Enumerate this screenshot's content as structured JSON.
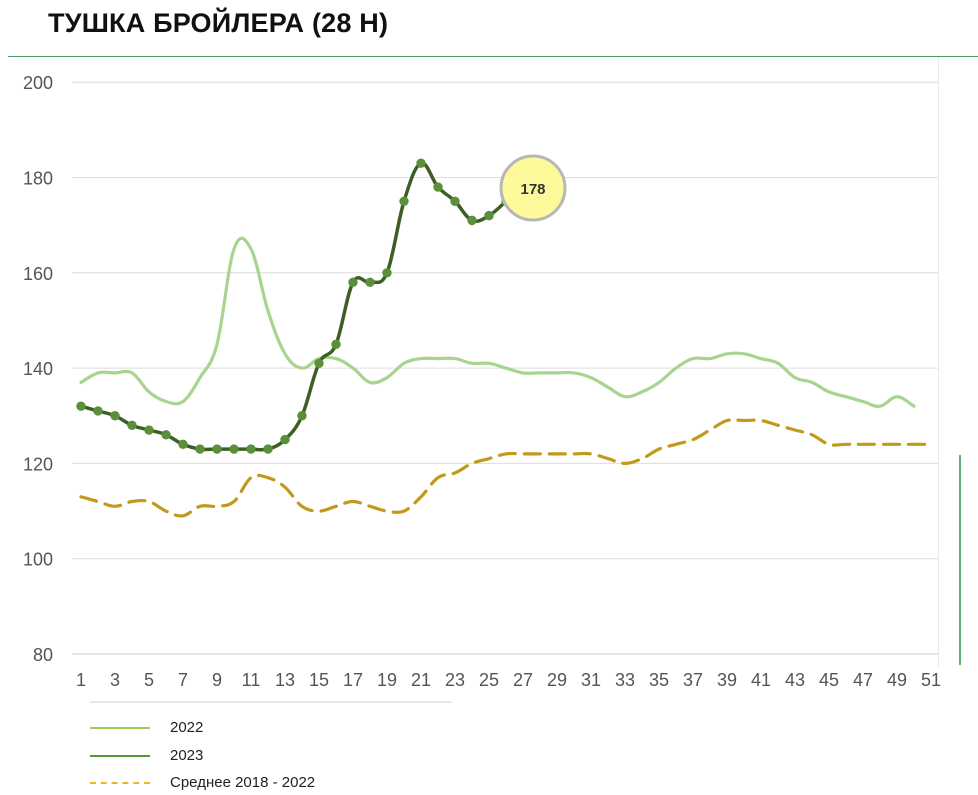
{
  "title": "ТУШКА БРОЙЛЕРА (28 Н)",
  "legend": {
    "items": [
      {
        "label": "2022",
        "color": "#9ccf4f",
        "dash": "solid"
      },
      {
        "label": "2023",
        "color": "#5a9a35",
        "dash": "solid"
      },
      {
        "label": "Среднее 2018 - 2022",
        "color": "#e8b830",
        "dash": "dashed"
      }
    ]
  },
  "chart_data": {
    "type": "line",
    "title": "ТУШКА БРОЙЛЕРА (28 Н)",
    "xlabel": "",
    "ylabel": "",
    "xlim": [
      1,
      51
    ],
    "ylim": [
      80,
      200
    ],
    "y_ticks": [
      80,
      100,
      120,
      140,
      160,
      180,
      200
    ],
    "x_ticks": [
      1,
      3,
      5,
      7,
      9,
      11,
      13,
      15,
      17,
      19,
      21,
      23,
      25,
      27,
      29,
      31,
      33,
      35,
      37,
      39,
      41,
      43,
      45,
      47,
      49,
      51
    ],
    "grid": "horizontal",
    "legend_position": "bottom-left",
    "series": [
      {
        "name": "2022",
        "color": "#a8d48f",
        "style": "solid",
        "x": [
          1,
          2,
          3,
          4,
          5,
          6,
          7,
          8,
          9,
          10,
          11,
          12,
          13,
          14,
          15,
          16,
          17,
          18,
          19,
          20,
          21,
          22,
          23,
          24,
          25,
          26,
          27,
          28,
          29,
          30,
          31,
          32,
          33,
          34,
          35,
          36,
          37,
          38,
          39,
          40,
          41,
          42,
          43,
          44,
          45,
          46,
          47,
          48,
          49,
          50
        ],
        "values": [
          137,
          139,
          139,
          139,
          135,
          133,
          133,
          138,
          145,
          165,
          165,
          152,
          143,
          140,
          142,
          142,
          140,
          137,
          138,
          141,
          142,
          142,
          142,
          141,
          141,
          140,
          139,
          139,
          139,
          139,
          138,
          136,
          134,
          135,
          137,
          140,
          142,
          142,
          143,
          143,
          142,
          141,
          138,
          137,
          135,
          134,
          133,
          132,
          134,
          132
        ]
      },
      {
        "name": "2023",
        "color": "#3d5e25",
        "style": "solid-markers",
        "x": [
          1,
          2,
          3,
          4,
          5,
          6,
          7,
          8,
          9,
          10,
          11,
          12,
          13,
          14,
          15,
          16,
          17,
          18,
          19,
          20,
          21,
          22,
          23,
          24,
          25,
          26
        ],
        "values": [
          132,
          131,
          130,
          128,
          127,
          126,
          124,
          123,
          123,
          123,
          123,
          123,
          125,
          130,
          141,
          145,
          158,
          158,
          160,
          175,
          183,
          178,
          175,
          171,
          172,
          175
        ]
      },
      {
        "name": "Среднее 2018 - 2022",
        "color": "#c19a1b",
        "style": "dashed",
        "x": [
          1,
          2,
          3,
          4,
          5,
          6,
          7,
          8,
          9,
          10,
          11,
          12,
          13,
          14,
          15,
          16,
          17,
          18,
          19,
          20,
          21,
          22,
          23,
          24,
          25,
          26,
          27,
          28,
          29,
          30,
          31,
          32,
          33,
          34,
          35,
          36,
          37,
          38,
          39,
          40,
          41,
          42,
          43,
          44,
          45,
          46,
          47,
          48,
          49,
          50,
          51
        ],
        "values": [
          113,
          112,
          111,
          112,
          112,
          110,
          109,
          111,
          111,
          112,
          117,
          117,
          115,
          111,
          110,
          111,
          112,
          111,
          110,
          110,
          113,
          117,
          118,
          120,
          121,
          122,
          122,
          122,
          122,
          122,
          122,
          121,
          120,
          121,
          123,
          124,
          125,
          127,
          129,
          129,
          129,
          128,
          127,
          126,
          124,
          124,
          124,
          124,
          124,
          124,
          124
        ]
      }
    ],
    "callout": {
      "x": 27,
      "y": 178,
      "label": "178",
      "fill": "#fdfa9b",
      "stroke": "#b7b7b7"
    }
  }
}
